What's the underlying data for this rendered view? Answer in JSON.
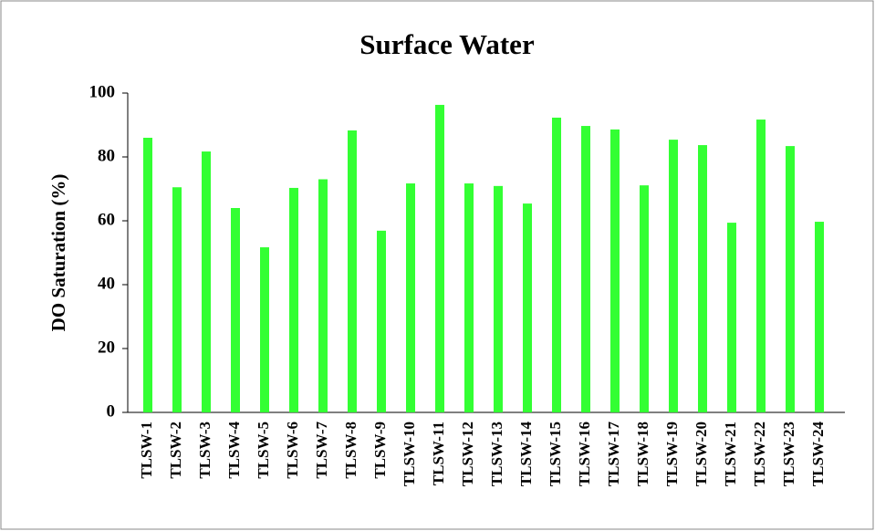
{
  "chart_data": {
    "type": "bar",
    "title": "Surface Water",
    "ylabel": "DO Saturation (%)",
    "categories": [
      "TLSW-1",
      "TLSW-2",
      "TLSW-3",
      "TLSW-4",
      "TLSW-5",
      "TLSW-6",
      "TLSW-7",
      "TLSW-8",
      "TLSW-9",
      "TLSW-10",
      "TLSW-11",
      "TLSW-12",
      "TLSW-13",
      "TLSW-14",
      "TLSW-15",
      "TLSW-16",
      "TLSW-17",
      "TLSW-18",
      "TLSW-19",
      "TLSW-20",
      "TLSW-21",
      "TLSW-22",
      "TLSW-23",
      "TLSW-24"
    ],
    "values": [
      86,
      70.5,
      81.7,
      64,
      51.7,
      70.3,
      73,
      88.3,
      56.9,
      71.7,
      96.3,
      71.7,
      70.9,
      65.4,
      92.3,
      89.7,
      88.6,
      71.1,
      85.4,
      83.7,
      59.4,
      91.7,
      83.4,
      59.7
    ],
    "color": "#33ff33",
    "ylim": [
      0,
      100
    ],
    "yticks": [
      0,
      20,
      40,
      60,
      80,
      100
    ],
    "grid": false
  }
}
